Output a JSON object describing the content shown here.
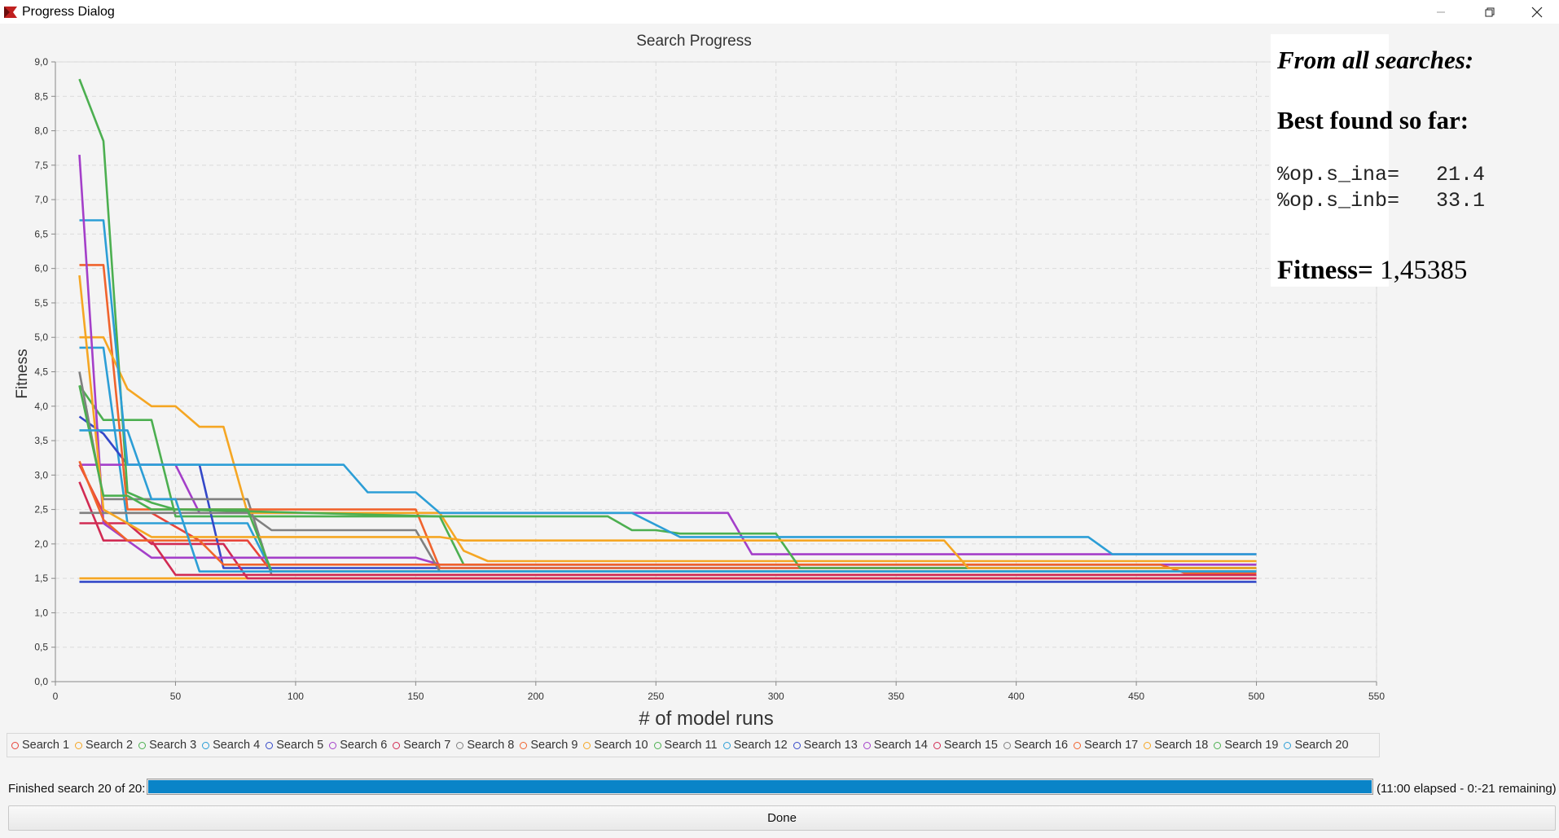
{
  "window": {
    "title": "Progress Dialog",
    "icon": "app-icon"
  },
  "chart_data": {
    "type": "line",
    "title": "Search Progress",
    "xlabel": "# of model runs",
    "ylabel": "Fitness",
    "xlim": [
      0,
      550
    ],
    "ylim": [
      0,
      9
    ],
    "xticks": [
      0,
      50,
      100,
      150,
      200,
      250,
      300,
      350,
      400,
      450,
      500,
      550
    ],
    "yticks": [
      0,
      0.5,
      1,
      1.5,
      2,
      2.5,
      3,
      3.5,
      4,
      4.5,
      5,
      5.5,
      6,
      6.5,
      7,
      7.5,
      8,
      8.5,
      9
    ],
    "ytick_labels": [
      "0,0",
      "0,5",
      "1,0",
      "1,5",
      "2,0",
      "2,5",
      "3,0",
      "3,5",
      "4,0",
      "4,5",
      "5,0",
      "5,5",
      "6,0",
      "6,5",
      "7,0",
      "7,5",
      "8,0",
      "8,5",
      "9,0"
    ],
    "grid": true,
    "legend_position": "bottom",
    "series": [
      {
        "name": "Search 1",
        "color": "#e8443a",
        "points": [
          [
            10,
            3.15
          ],
          [
            20,
            2.45
          ],
          [
            40,
            2.45
          ],
          [
            60,
            2.05
          ],
          [
            80,
            2.05
          ],
          [
            90,
            1.6
          ],
          [
            500,
            1.6
          ]
        ]
      },
      {
        "name": "Search 2",
        "color": "#f5a623",
        "points": [
          [
            10,
            1.5
          ],
          [
            500,
            1.5
          ]
        ]
      },
      {
        "name": "Search 3",
        "color": "#4caf50",
        "points": [
          [
            10,
            4.3
          ],
          [
            20,
            3.8
          ],
          [
            40,
            3.8
          ],
          [
            50,
            2.4
          ],
          [
            90,
            2.4
          ],
          [
            160,
            2.4
          ],
          [
            170,
            1.7
          ],
          [
            500,
            1.7
          ]
        ]
      },
      {
        "name": "Search 4",
        "color": "#2c9ed6",
        "points": [
          [
            10,
            4.85
          ],
          [
            20,
            4.85
          ],
          [
            30,
            2.3
          ],
          [
            80,
            2.3
          ],
          [
            90,
            1.6
          ],
          [
            500,
            1.6
          ]
        ]
      },
      {
        "name": "Search 5",
        "color": "#3348c8",
        "points": [
          [
            10,
            3.85
          ],
          [
            20,
            3.6
          ],
          [
            30,
            3.15
          ],
          [
            60,
            3.15
          ],
          [
            70,
            1.65
          ],
          [
            500,
            1.65
          ]
        ]
      },
      {
        "name": "Search 6",
        "color": "#a43fc9",
        "points": [
          [
            10,
            3.15
          ],
          [
            50,
            3.15
          ],
          [
            60,
            2.45
          ],
          [
            90,
            2.45
          ],
          [
            160,
            2.45
          ],
          [
            280,
            2.45
          ],
          [
            290,
            1.85
          ],
          [
            500,
            1.85
          ]
        ]
      },
      {
        "name": "Search 7",
        "color": "#d12b53",
        "points": [
          [
            10,
            2.3
          ],
          [
            30,
            2.3
          ],
          [
            40,
            2.0
          ],
          [
            70,
            2.0
          ],
          [
            80,
            1.5
          ],
          [
            500,
            1.5
          ]
        ]
      },
      {
        "name": "Search 8",
        "color": "#808080",
        "points": [
          [
            10,
            4.5
          ],
          [
            20,
            2.65
          ],
          [
            80,
            2.65
          ],
          [
            90,
            1.55
          ],
          [
            500,
            1.55
          ]
        ]
      },
      {
        "name": "Search 9",
        "color": "#f0632d",
        "points": [
          [
            10,
            6.05
          ],
          [
            20,
            6.05
          ],
          [
            30,
            2.5
          ],
          [
            150,
            2.5
          ],
          [
            160,
            1.65
          ],
          [
            500,
            1.65
          ]
        ]
      },
      {
        "name": "Search 10",
        "color": "#f5a623",
        "points": [
          [
            10,
            5.0
          ],
          [
            20,
            5.0
          ],
          [
            30,
            4.25
          ],
          [
            40,
            4.0
          ],
          [
            50,
            4.0
          ],
          [
            60,
            3.7
          ],
          [
            70,
            3.7
          ],
          [
            80,
            2.45
          ],
          [
            160,
            2.45
          ],
          [
            170,
            1.9
          ],
          [
            180,
            1.75
          ],
          [
            500,
            1.75
          ]
        ]
      },
      {
        "name": "Search 11",
        "color": "#4caf50",
        "points": [
          [
            10,
            8.75
          ],
          [
            20,
            7.85
          ],
          [
            30,
            2.75
          ],
          [
            40,
            2.6
          ],
          [
            50,
            2.5
          ],
          [
            160,
            2.4
          ],
          [
            230,
            2.4
          ],
          [
            240,
            2.2
          ],
          [
            250,
            2.2
          ],
          [
            260,
            2.15
          ],
          [
            300,
            2.15
          ],
          [
            310,
            1.65
          ],
          [
            500,
            1.65
          ]
        ]
      },
      {
        "name": "Search 12",
        "color": "#2c9ed6",
        "points": [
          [
            10,
            6.7
          ],
          [
            20,
            6.7
          ],
          [
            30,
            3.15
          ],
          [
            120,
            3.15
          ],
          [
            130,
            2.75
          ],
          [
            150,
            2.75
          ],
          [
            160,
            2.45
          ],
          [
            240,
            2.45
          ],
          [
            260,
            2.1
          ],
          [
            430,
            2.1
          ],
          [
            440,
            1.85
          ],
          [
            500,
            1.85
          ]
        ]
      },
      {
        "name": "Search 13",
        "color": "#3348c8",
        "points": [
          [
            10,
            1.45
          ],
          [
            500,
            1.45
          ]
        ]
      },
      {
        "name": "Search 14",
        "color": "#a43fc9",
        "points": [
          [
            10,
            7.65
          ],
          [
            20,
            2.3
          ],
          [
            40,
            1.8
          ],
          [
            60,
            1.8
          ],
          [
            150,
            1.8
          ],
          [
            160,
            1.7
          ],
          [
            500,
            1.7
          ]
        ]
      },
      {
        "name": "Search 15",
        "color": "#d12b53",
        "points": [
          [
            10,
            2.9
          ],
          [
            20,
            2.05
          ],
          [
            40,
            2.05
          ],
          [
            50,
            1.55
          ],
          [
            500,
            1.55
          ]
        ]
      },
      {
        "name": "Search 16",
        "color": "#808080",
        "points": [
          [
            10,
            2.45
          ],
          [
            80,
            2.45
          ],
          [
            90,
            2.2
          ],
          [
            150,
            2.2
          ],
          [
            160,
            1.6
          ],
          [
            500,
            1.6
          ]
        ]
      },
      {
        "name": "Search 17",
        "color": "#f0632d",
        "points": [
          [
            10,
            3.2
          ],
          [
            20,
            2.35
          ],
          [
            30,
            2.05
          ],
          [
            60,
            2.05
          ],
          [
            70,
            1.7
          ],
          [
            460,
            1.7
          ],
          [
            470,
            1.58
          ],
          [
            500,
            1.58
          ]
        ]
      },
      {
        "name": "Search 18",
        "color": "#f5a623",
        "points": [
          [
            10,
            5.9
          ],
          [
            20,
            2.5
          ],
          [
            40,
            2.1
          ],
          [
            160,
            2.1
          ],
          [
            170,
            2.05
          ],
          [
            370,
            2.05
          ],
          [
            380,
            1.65
          ],
          [
            500,
            1.65
          ]
        ]
      },
      {
        "name": "Search 19",
        "color": "#4caf50",
        "points": [
          [
            10,
            4.3
          ],
          [
            20,
            2.7
          ],
          [
            30,
            2.7
          ],
          [
            40,
            2.5
          ],
          [
            80,
            2.5
          ],
          [
            90,
            1.6
          ],
          [
            500,
            1.6
          ]
        ]
      },
      {
        "name": "Search 20",
        "color": "#2c9ed6",
        "points": [
          [
            10,
            3.65
          ],
          [
            30,
            3.65
          ],
          [
            40,
            2.65
          ],
          [
            50,
            2.65
          ],
          [
            60,
            1.6
          ],
          [
            500,
            1.6
          ]
        ]
      }
    ]
  },
  "info": {
    "title": "From all searches:",
    "best_heading": "Best found so far:",
    "params": [
      {
        "text": "%op.s_ina=   21.4"
      },
      {
        "text": "%op.s_inb=   33.1"
      }
    ],
    "fitness_label": "Fitness=",
    "fitness_value": "1,45385"
  },
  "legend": [
    "Search 1",
    "Search 2",
    "Search 3",
    "Search 4",
    "Search 5",
    "Search 6",
    "Search 7",
    "Search 8",
    "Search 9",
    "Search 10",
    "Search 11",
    "Search 12",
    "Search 13",
    "Search 14",
    "Search 15",
    "Search 16",
    "Search 17",
    "Search 18",
    "Search 19",
    "Search 20"
  ],
  "status": {
    "label": "Finished search 20 of 20:",
    "progress": 1.0,
    "elapsed": "(11:00 elapsed - 0:-21 remaining)"
  },
  "buttons": {
    "done": "Done"
  }
}
